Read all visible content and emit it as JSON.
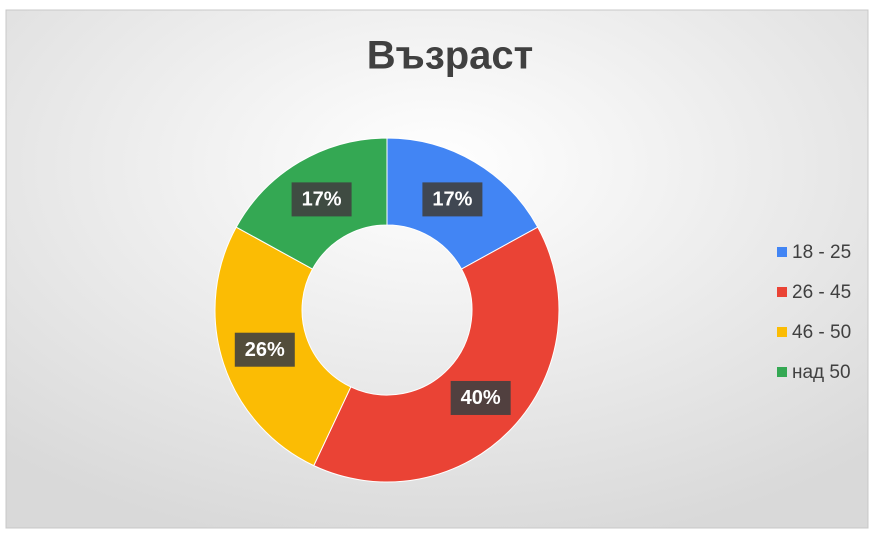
{
  "chart_data": {
    "type": "donut",
    "title": "Възраст",
    "categories": [
      "18 - 25",
      "26 - 45",
      "46 - 50",
      "над 50"
    ],
    "values": [
      17,
      40,
      26,
      17
    ],
    "value_labels": [
      "17%",
      "40%",
      "26%",
      "17%"
    ],
    "colors": [
      "#4285f4",
      "#ea4335",
      "#fbbc04",
      "#34a853"
    ],
    "legend": "right"
  }
}
